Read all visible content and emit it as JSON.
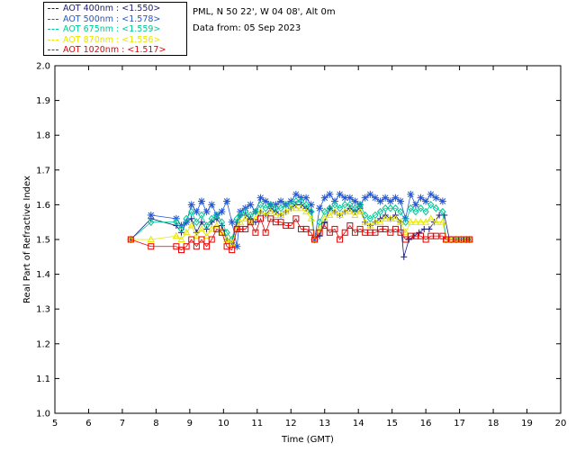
{
  "header": {
    "location": "PML, N 50 22', W 04 08', Alt 0m",
    "date_line": "Data from: 05 Sep 2023"
  },
  "legend": [
    {
      "label": "AOT  400nm : <1.550>",
      "color": "#1a1a7a"
    },
    {
      "label": "AOT  500nm : <1.578>",
      "color": "#1f56d6"
    },
    {
      "label": "AOT  675nm : <1.559>",
      "color": "#00c896"
    },
    {
      "label": "AOT  870nm : <1.556>",
      "color": "#e6e600"
    },
    {
      "label": "AOT 1020nm : <1.517>",
      "color": "#e60000"
    }
  ],
  "chart_data": {
    "type": "scatter",
    "xlabel": "Time (GMT)",
    "ylabel": "Real Part of Refractive Index",
    "xlim": [
      5,
      20
    ],
    "ylim": [
      1.0,
      2.0
    ],
    "xticks": [
      "5",
      "6",
      "7",
      "8",
      "9",
      "10",
      "11",
      "12",
      "13",
      "14",
      "15",
      "16",
      "17",
      "18",
      "19",
      "20"
    ],
    "yticks": [
      "1.0",
      "1.1",
      "1.2",
      "1.3",
      "1.4",
      "1.5",
      "1.6",
      "1.7",
      "1.8",
      "1.9",
      "2.0"
    ],
    "series": [
      {
        "name": "AOT  400nm",
        "marker": "plus",
        "color": "#1a1a7a",
        "x": [
          7.25,
          7.85,
          8.6,
          8.75,
          8.9,
          9.05,
          9.2,
          9.35,
          9.5,
          9.65,
          9.8,
          9.95,
          10.1,
          10.25,
          10.4,
          10.5,
          10.65,
          10.8,
          10.95,
          11.1,
          11.25,
          11.4,
          11.55,
          11.7,
          11.85,
          12.0,
          12.15,
          12.3,
          12.45,
          12.6,
          12.7,
          12.85,
          13.0,
          13.15,
          13.3,
          13.45,
          13.6,
          13.75,
          13.9,
          14.05,
          14.2,
          14.35,
          14.5,
          14.65,
          14.8,
          14.95,
          15.1,
          15.25,
          15.35,
          15.5,
          15.65,
          15.8,
          15.95,
          16.1,
          16.25,
          16.4,
          16.55,
          16.7,
          16.9,
          17.05,
          17.2,
          17.3
        ],
        "y": [
          1.5,
          1.56,
          1.54,
          1.52,
          1.55,
          1.56,
          1.52,
          1.55,
          1.53,
          1.55,
          1.56,
          1.54,
          1.5,
          1.49,
          1.55,
          1.57,
          1.57,
          1.56,
          1.55,
          1.58,
          1.57,
          1.59,
          1.58,
          1.57,
          1.58,
          1.59,
          1.6,
          1.6,
          1.59,
          1.58,
          1.5,
          1.51,
          1.55,
          1.59,
          1.58,
          1.57,
          1.58,
          1.59,
          1.58,
          1.59,
          1.55,
          1.54,
          1.55,
          1.56,
          1.57,
          1.56,
          1.57,
          1.55,
          1.45,
          1.5,
          1.51,
          1.52,
          1.53,
          1.53,
          1.55,
          1.57,
          1.57,
          1.5,
          1.5,
          1.5,
          1.5,
          1.5
        ]
      },
      {
        "name": "AOT  500nm",
        "marker": "asterisk",
        "color": "#1f56d6",
        "x": [
          7.85,
          8.6,
          8.75,
          8.9,
          9.05,
          9.2,
          9.35,
          9.5,
          9.65,
          9.8,
          9.95,
          10.1,
          10.25,
          10.4,
          10.5,
          10.65,
          10.8,
          10.95,
          11.1,
          11.25,
          11.4,
          11.55,
          11.7,
          11.85,
          12.0,
          12.15,
          12.3,
          12.45,
          12.6,
          12.7,
          12.85,
          13.0,
          13.15,
          13.3,
          13.45,
          13.6,
          13.75,
          13.9,
          14.05,
          14.2,
          14.35,
          14.5,
          14.65,
          14.8,
          14.95,
          15.1,
          15.25,
          15.4,
          15.55,
          15.7,
          15.85,
          16.0,
          16.15,
          16.3,
          16.5
        ],
        "y": [
          1.57,
          1.56,
          1.54,
          1.55,
          1.6,
          1.58,
          1.61,
          1.58,
          1.6,
          1.57,
          1.58,
          1.61,
          1.55,
          1.48,
          1.58,
          1.59,
          1.6,
          1.58,
          1.62,
          1.61,
          1.6,
          1.6,
          1.61,
          1.6,
          1.61,
          1.63,
          1.62,
          1.62,
          1.6,
          1.5,
          1.59,
          1.62,
          1.63,
          1.61,
          1.63,
          1.62,
          1.62,
          1.61,
          1.6,
          1.62,
          1.63,
          1.62,
          1.61,
          1.62,
          1.61,
          1.62,
          1.61,
          1.56,
          1.63,
          1.6,
          1.62,
          1.61,
          1.63,
          1.62,
          1.61
        ]
      },
      {
        "name": "AOT  675nm",
        "marker": "diamond",
        "color": "#00c896",
        "x": [
          7.25,
          7.85,
          8.6,
          8.75,
          8.9,
          9.05,
          9.2,
          9.35,
          9.5,
          9.65,
          9.8,
          9.95,
          10.1,
          10.25,
          10.4,
          10.5,
          10.65,
          10.8,
          10.95,
          11.1,
          11.25,
          11.4,
          11.55,
          11.7,
          11.85,
          12.0,
          12.15,
          12.3,
          12.45,
          12.6,
          12.7,
          12.85,
          13.0,
          13.15,
          13.3,
          13.45,
          13.6,
          13.75,
          13.9,
          14.05,
          14.2,
          14.35,
          14.5,
          14.65,
          14.8,
          14.95,
          15.1,
          15.25,
          15.4,
          15.55,
          15.7,
          15.85,
          16.0,
          16.15,
          16.3,
          16.5,
          16.6,
          16.75,
          16.9,
          17.05,
          17.2,
          17.3
        ],
        "y": [
          1.5,
          1.55,
          1.55,
          1.53,
          1.56,
          1.58,
          1.55,
          1.57,
          1.54,
          1.56,
          1.57,
          1.55,
          1.52,
          1.5,
          1.56,
          1.57,
          1.58,
          1.57,
          1.58,
          1.6,
          1.59,
          1.6,
          1.59,
          1.59,
          1.6,
          1.6,
          1.61,
          1.61,
          1.6,
          1.58,
          1.5,
          1.55,
          1.58,
          1.59,
          1.6,
          1.59,
          1.6,
          1.6,
          1.59,
          1.6,
          1.57,
          1.56,
          1.57,
          1.58,
          1.59,
          1.59,
          1.59,
          1.58,
          1.55,
          1.59,
          1.58,
          1.59,
          1.58,
          1.6,
          1.59,
          1.58,
          1.5,
          1.5,
          1.5,
          1.5,
          1.5,
          1.5
        ]
      },
      {
        "name": "AOT  870nm",
        "marker": "triangle",
        "color": "#e6e600",
        "x": [
          7.25,
          7.85,
          8.6,
          8.75,
          8.9,
          9.05,
          9.2,
          9.35,
          9.5,
          9.65,
          9.8,
          9.95,
          10.1,
          10.25,
          10.4,
          10.5,
          10.65,
          10.8,
          10.95,
          11.1,
          11.25,
          11.4,
          11.55,
          11.7,
          11.85,
          12.0,
          12.15,
          12.3,
          12.45,
          12.6,
          12.7,
          12.85,
          13.0,
          13.15,
          13.3,
          13.45,
          13.6,
          13.75,
          13.9,
          14.05,
          14.2,
          14.35,
          14.5,
          14.65,
          14.8,
          14.95,
          15.1,
          15.25,
          15.4,
          15.55,
          15.7,
          15.85,
          16.0,
          16.15,
          16.3,
          16.5,
          16.6,
          16.75,
          16.9,
          17.05,
          17.2,
          17.3
        ],
        "y": [
          1.5,
          1.5,
          1.51,
          1.5,
          1.52,
          1.54,
          1.51,
          1.53,
          1.51,
          1.53,
          1.54,
          1.52,
          1.5,
          1.49,
          1.53,
          1.55,
          1.56,
          1.55,
          1.56,
          1.58,
          1.57,
          1.58,
          1.57,
          1.57,
          1.58,
          1.59,
          1.59,
          1.59,
          1.58,
          1.56,
          1.5,
          1.53,
          1.56,
          1.57,
          1.58,
          1.57,
          1.58,
          1.58,
          1.57,
          1.58,
          1.55,
          1.54,
          1.55,
          1.55,
          1.56,
          1.56,
          1.56,
          1.55,
          1.52,
          1.55,
          1.55,
          1.55,
          1.55,
          1.56,
          1.55,
          1.55,
          1.5,
          1.5,
          1.5,
          1.5,
          1.5,
          1.5
        ]
      },
      {
        "name": "AOT 1020nm",
        "marker": "square",
        "color": "#e60000",
        "x": [
          7.25,
          7.85,
          8.6,
          8.75,
          8.9,
          9.05,
          9.2,
          9.35,
          9.5,
          9.65,
          9.8,
          9.95,
          10.1,
          10.25,
          10.4,
          10.5,
          10.65,
          10.8,
          10.95,
          11.1,
          11.25,
          11.4,
          11.55,
          11.7,
          11.85,
          12.0,
          12.15,
          12.3,
          12.45,
          12.6,
          12.7,
          12.85,
          13.0,
          13.15,
          13.3,
          13.45,
          13.6,
          13.75,
          13.9,
          14.05,
          14.2,
          14.35,
          14.5,
          14.65,
          14.8,
          14.95,
          15.1,
          15.25,
          15.4,
          15.55,
          15.7,
          15.85,
          16.0,
          16.15,
          16.3,
          16.5,
          16.6,
          16.75,
          16.9,
          17.05,
          17.2,
          17.3
        ],
        "y": [
          1.5,
          1.48,
          1.48,
          1.47,
          1.48,
          1.5,
          1.48,
          1.5,
          1.48,
          1.5,
          1.53,
          1.52,
          1.48,
          1.47,
          1.53,
          1.53,
          1.53,
          1.55,
          1.52,
          1.56,
          1.52,
          1.56,
          1.55,
          1.55,
          1.54,
          1.54,
          1.56,
          1.53,
          1.53,
          1.52,
          1.5,
          1.52,
          1.54,
          1.52,
          1.53,
          1.5,
          1.52,
          1.54,
          1.52,
          1.53,
          1.52,
          1.52,
          1.52,
          1.53,
          1.53,
          1.52,
          1.53,
          1.52,
          1.5,
          1.51,
          1.51,
          1.51,
          1.5,
          1.51,
          1.51,
          1.51,
          1.5,
          1.5,
          1.5,
          1.5,
          1.5,
          1.5
        ]
      }
    ]
  }
}
